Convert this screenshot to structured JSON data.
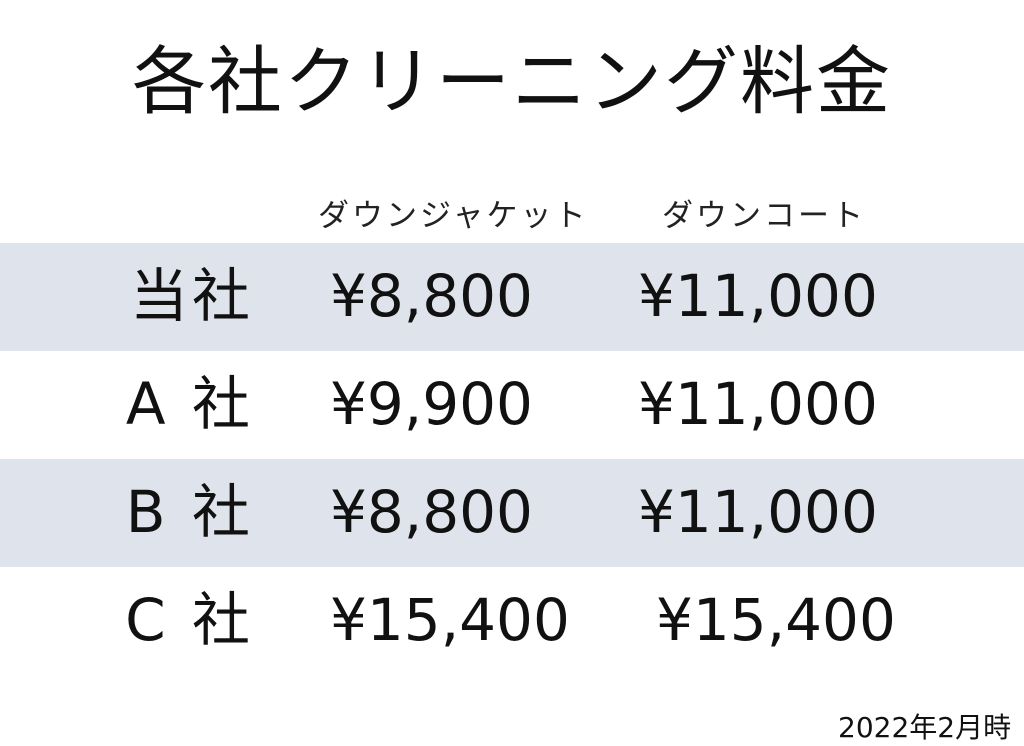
{
  "title": "各社クリーニング料金",
  "columns": [
    "ダウンジャケット",
    "ダウンコート"
  ],
  "rows": [
    {
      "company": "当社",
      "jacket": "¥8,800",
      "coat": "¥11,000"
    },
    {
      "company": "A 社",
      "jacket": "¥9,900",
      "coat": "¥11,000"
    },
    {
      "company": "B 社",
      "jacket": "¥8,800",
      "coat": "¥11,000"
    },
    {
      "company": "C 社",
      "jacket": "¥15,400",
      "coat": "¥15,400"
    }
  ],
  "note": "2022年2月時",
  "colors": {
    "stripe": "#dfe4ec"
  }
}
